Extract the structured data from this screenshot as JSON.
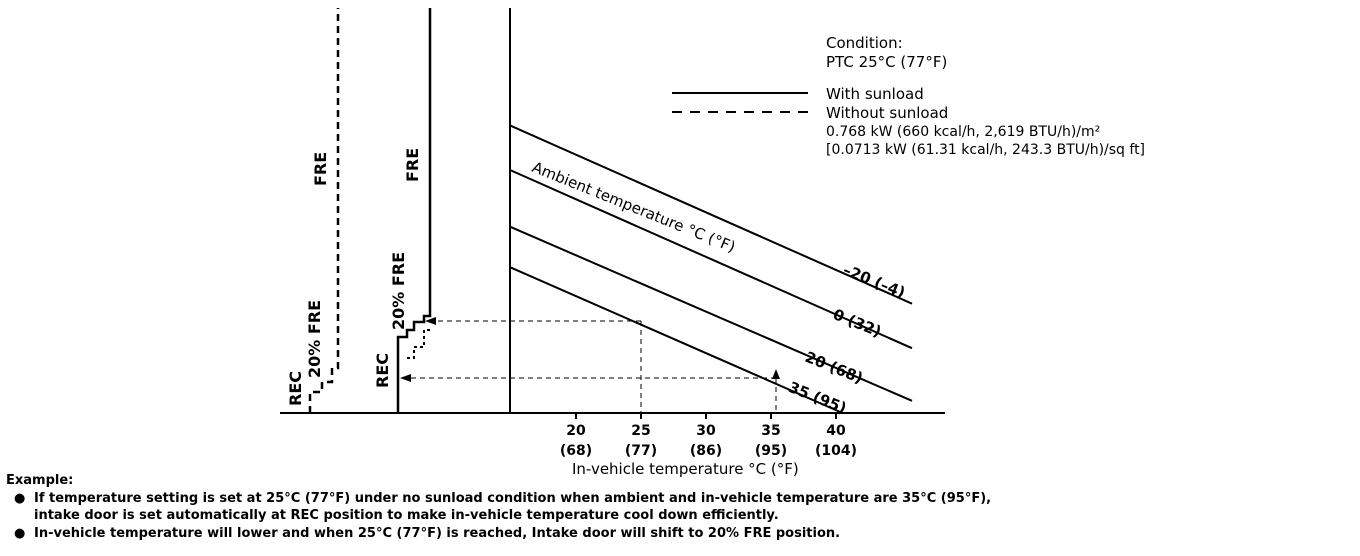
{
  "chart_data": {
    "type": "line",
    "condition": {
      "title": "Condition:",
      "ptc": "PTC 25°C (77°F)",
      "legend_solid": "With sunload",
      "legend_dashed": "Without sunload",
      "sunload_line1": "0.768 kW (660 kcal/h, 2,619 BTU/h)/m²",
      "sunload_line2": "[0.0713 kW (61.31 kcal/h, 243.3 BTU/h)/sq ft]"
    },
    "xlabel": "In-vehicle temperature °C (°F)",
    "x_ticks": [
      {
        "c": "20",
        "f": "(68)",
        "value": 20
      },
      {
        "c": "25",
        "f": "(77)",
        "value": 25
      },
      {
        "c": "30",
        "f": "(86)",
        "value": 30
      },
      {
        "c": "35",
        "f": "(95)",
        "value": 35
      },
      {
        "c": "40",
        "f": "(104)",
        "value": 40
      }
    ],
    "xlim": [
      15,
      45
    ],
    "curve_title": "Ambient temperature °C (°F)",
    "series": [
      {
        "name": "–20 (–4)",
        "x": [
          15,
          45
        ],
        "level": [
          0.71,
          0.27
        ]
      },
      {
        "name": "0 (32)",
        "x": [
          15,
          45
        ],
        "level": [
          0.6,
          0.16
        ]
      },
      {
        "name": "20 (68)",
        "x": [
          15,
          45
        ],
        "level": [
          0.46,
          0.03
        ]
      },
      {
        "name": "35 (95)",
        "x": [
          15,
          40.5
        ],
        "level": [
          0.36,
          0.0
        ]
      }
    ],
    "door_positions": {
      "with_sunload": [
        "REC",
        "20% FRE",
        "FRE"
      ],
      "without_sunload": [
        "REC",
        "20% FRE",
        "FRE"
      ]
    },
    "example_marks": [
      {
        "x": 25,
        "curve": "35 (95)"
      },
      {
        "x": 35,
        "curve": "35 (95)"
      }
    ]
  },
  "example": {
    "heading": "Example:",
    "bullet1_line1": "If temperature setting is set at 25°C (77°F) under no sunload condition when ambient and in-vehicle temperature are 35°C (95°F),",
    "bullet1_line2": "intake door is set automatically at REC position to make in-vehicle temperature cool down efficiently.",
    "bullet2": "In-vehicle temperature will lower and when 25°C (77°F) is reached, Intake door will shift to 20% FRE position.",
    "bullet_symbol": "●"
  }
}
